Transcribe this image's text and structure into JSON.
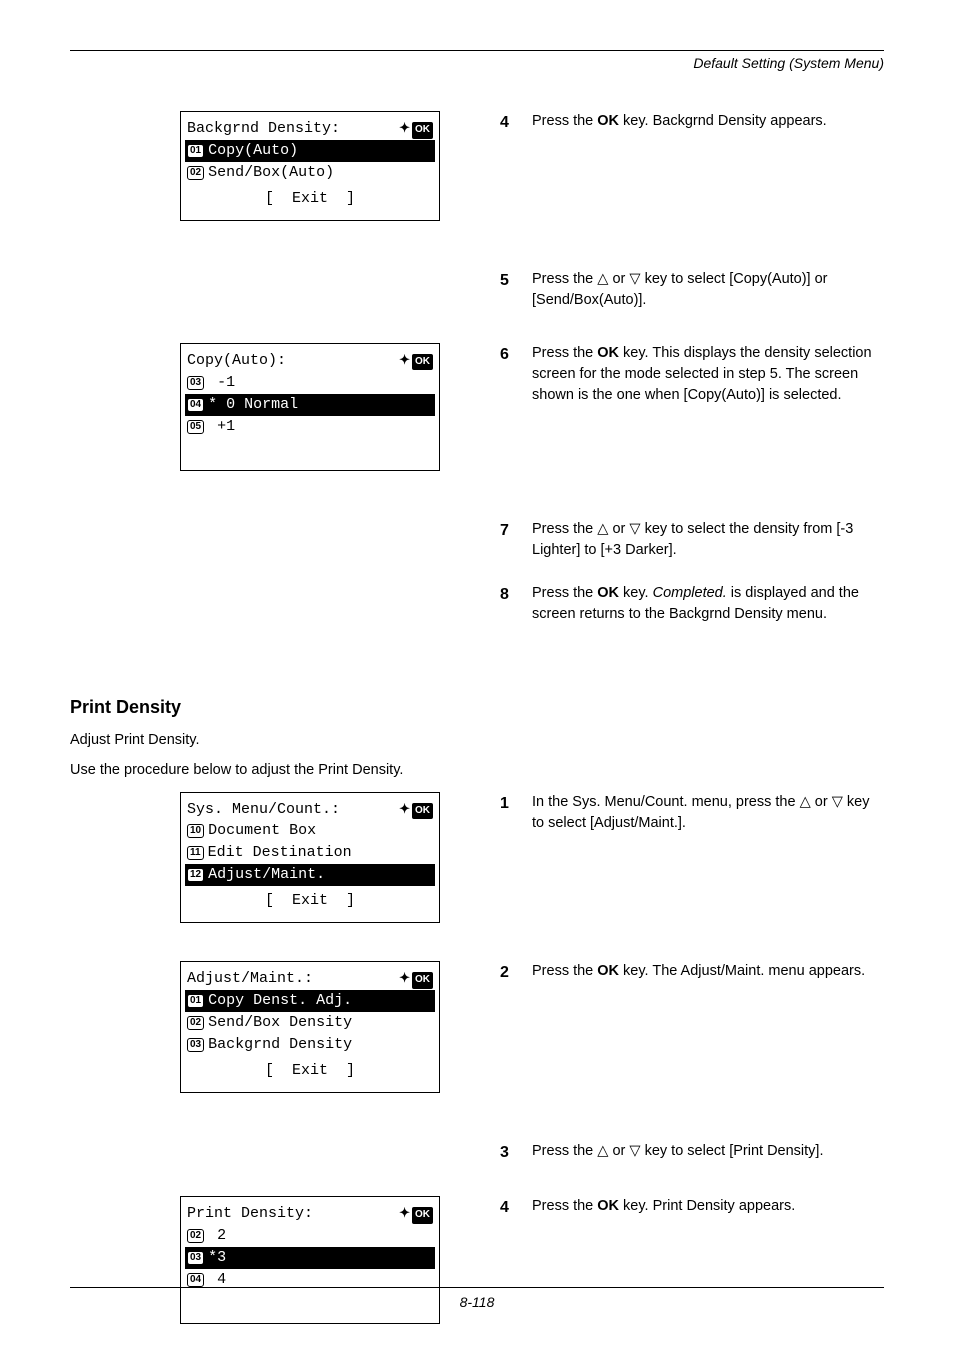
{
  "header": {
    "title": "Default Setting (System Menu)"
  },
  "steps_top": [
    {
      "n": "4",
      "html": "Press the <b>OK</b> key. Backgrnd Density appears."
    },
    {
      "n": "5",
      "html": "Press the <span class='tri-up'></span> or <span class='tri-dn'></span> key to select [Copy(Auto)] or [Send/Box(Auto)]."
    },
    {
      "n": "6",
      "html": "Press the <b>OK</b> key. This displays the density selection screen for the mode selected in step 5. The screen shown is the one when [Copy(Auto)] is selected."
    },
    {
      "n": "7",
      "html": "Press the <span class='tri-up'></span> or <span class='tri-dn'></span> key to select the density from [-3 Lighter] to [+3 Darker]."
    },
    {
      "n": "8",
      "html": "Press the <b>OK</b> key. <i>Completed.</i> is displayed and the screen returns to the Backgrnd Density menu."
    }
  ],
  "lcd1": {
    "title": "Backgrnd Density:",
    "rows": [
      {
        "num": "01",
        "text": "Copy(Auto)",
        "hl": true
      },
      {
        "num": "02",
        "text": "Send/Box(Auto)",
        "hl": false
      }
    ],
    "footer": "[  Exit  ]",
    "show_nav": true
  },
  "lcd2": {
    "title": "Copy(Auto):",
    "rows": [
      {
        "num": "03",
        "text": " -1",
        "hl": false
      },
      {
        "num": "04",
        "text": "* 0 Normal",
        "hl": true
      },
      {
        "num": "05",
        "text": " +1",
        "hl": false
      }
    ],
    "footer": "",
    "show_nav": true
  },
  "section": {
    "heading": "Print Density",
    "p1": "Adjust Print Density.",
    "p2": "Use the procedure below to adjust the Print Density."
  },
  "steps_bottom": [
    {
      "n": "1",
      "html": "In the Sys. Menu/Count. menu, press the <span class='tri-up'></span> or <span class='tri-dn'></span> key to select [Adjust/Maint.]."
    },
    {
      "n": "2",
      "html": "Press the <b>OK</b> key. The Adjust/Maint. menu appears."
    },
    {
      "n": "3",
      "html": "Press the <span class='tri-up'></span> or <span class='tri-dn'></span> key to select [Print Density]."
    },
    {
      "n": "4",
      "html": "Press the <b>OK</b> key. Print Density appears."
    }
  ],
  "lcd3": {
    "title": "Sys. Menu/Count.:",
    "rows": [
      {
        "num": "10",
        "text": "Document Box",
        "hl": false
      },
      {
        "num": "11",
        "text": "Edit Destination",
        "hl": false
      },
      {
        "num": "12",
        "text": "Adjust/Maint.",
        "hl": true
      }
    ],
    "footer": "[  Exit  ]",
    "show_nav": true
  },
  "lcd4": {
    "title": "Adjust/Maint.:",
    "rows": [
      {
        "num": "01",
        "text": "Copy Denst. Adj.",
        "hl": true
      },
      {
        "num": "02",
        "text": "Send/Box Density",
        "hl": false
      },
      {
        "num": "03",
        "text": "Backgrnd Density",
        "hl": false
      }
    ],
    "footer": "[  Exit  ]",
    "show_nav": true
  },
  "lcd5": {
    "title": "Print Density:",
    "rows": [
      {
        "num": "02",
        "text": " 2",
        "hl": false
      },
      {
        "num": "03",
        "text": "*3",
        "hl": true
      },
      {
        "num": "04",
        "text": " 4",
        "hl": false
      }
    ],
    "footer": "",
    "show_nav": true
  },
  "footer": {
    "page": "8-118"
  }
}
